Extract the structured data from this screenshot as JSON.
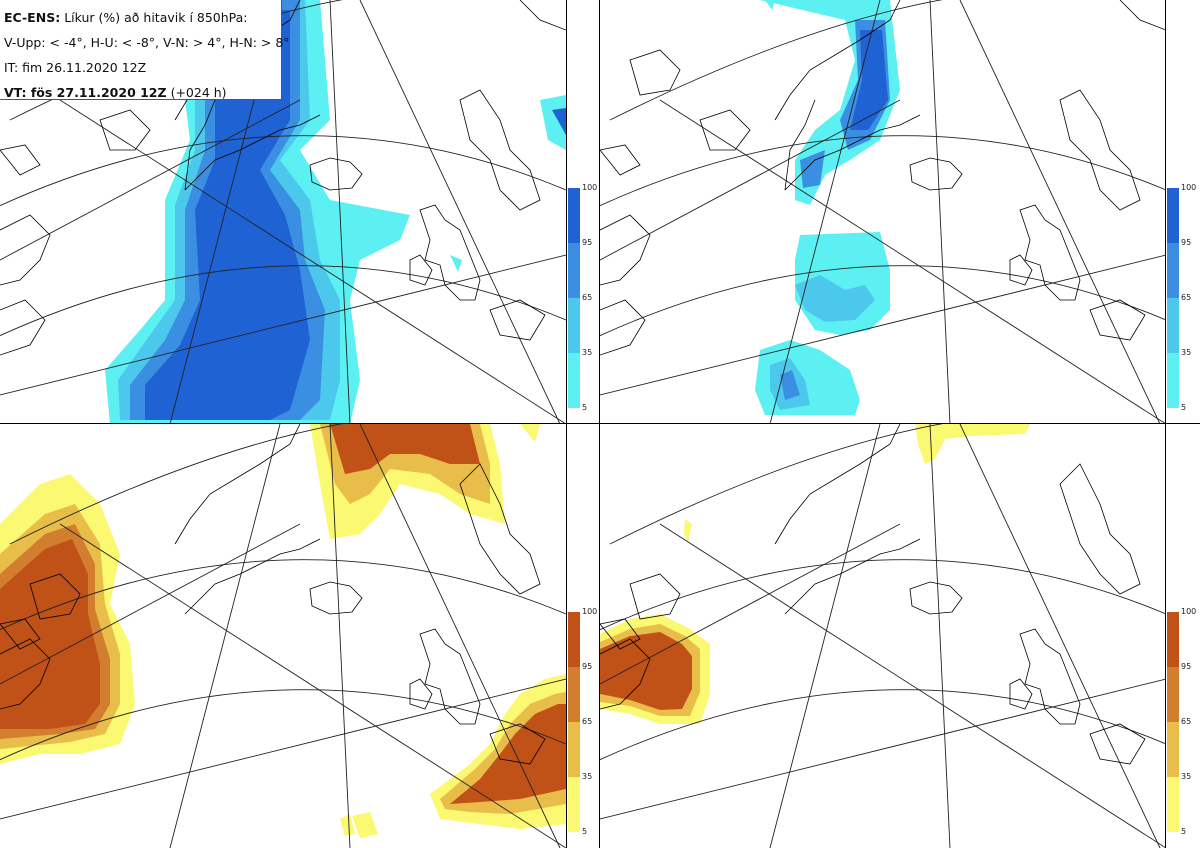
{
  "header": {
    "title_bold": "EC-ENS:",
    "title_rest": "Líkur (%) að hitavik í 850hPa:",
    "thresholds": "V-Upp: < -4°, H-U: < -8°, V-N: > 4°, H-N: > 8°",
    "init_time": "IT: fim 26.11.2020 12Z",
    "valid_time_bold": "VT: fös 27.11.2020 12Z",
    "valid_time_rest": "(+024 h)"
  },
  "panels": [
    {
      "id": "V-Upp",
      "colorbar": "blue"
    },
    {
      "id": "H-U",
      "colorbar": "blue"
    },
    {
      "id": "V-N",
      "colorbar": "orange"
    },
    {
      "id": "H-N",
      "colorbar": "orange"
    }
  ],
  "colorbar_blue": {
    "colors": [
      "#5cf0f2",
      "#4cc8ec",
      "#3a8fe2",
      "#1f62d4"
    ],
    "ticks": [
      "100",
      "95",
      "65",
      "35",
      "5"
    ]
  },
  "colorbar_orange": {
    "colors": [
      "#fbf871",
      "#e8bd4a",
      "#d37d2f",
      "#c05218"
    ],
    "ticks": [
      "100",
      "95",
      "65",
      "35",
      "5"
    ]
  }
}
